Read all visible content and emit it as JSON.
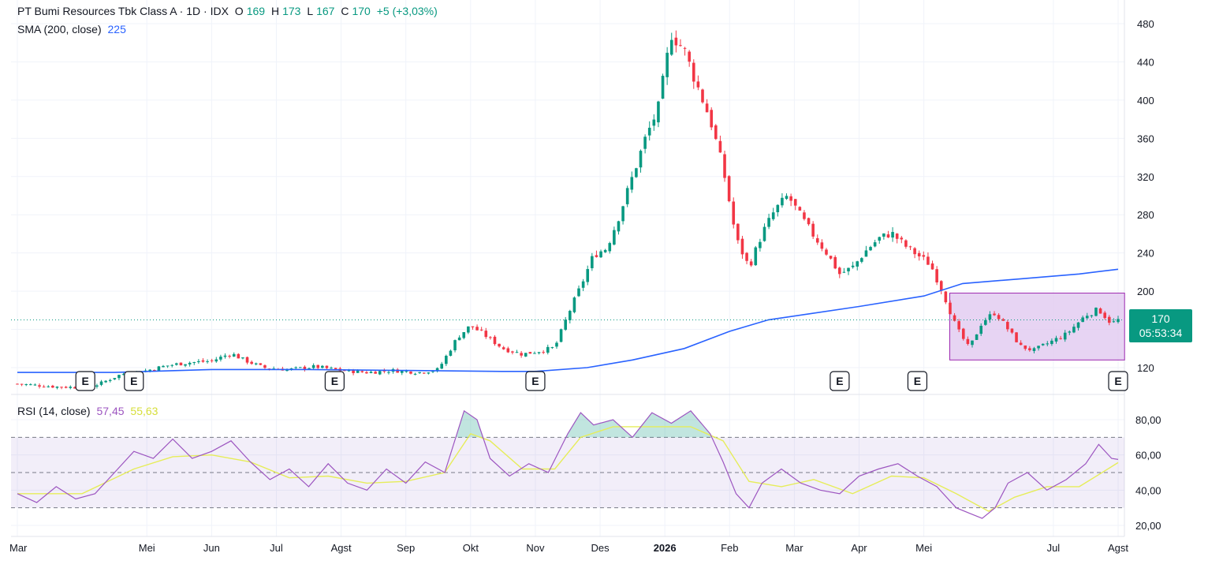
{
  "header": {
    "symbol_line": "PT Bumi Resources Tbk Class A · 1D · IDX",
    "open_label": "O",
    "open_value": "169",
    "high_label": "H",
    "high_value": "173",
    "low_label": "L",
    "low_value": "167",
    "close_label": "C",
    "close_value": "170",
    "change": "+5 (+3,03%)"
  },
  "sma_legend": {
    "label": "SMA (200, close)",
    "value": "225"
  },
  "rsi_legend": {
    "label": "RSI (14, close)",
    "rsi_value": "57,45",
    "ma_value": "55,63"
  },
  "price_tag": {
    "price": "170",
    "countdown": "05:53:34"
  },
  "colors": {
    "up": "#089981",
    "down": "#f23645",
    "sma": "#2962ff",
    "rsi": "#9c55c0",
    "rsi_ma": "#e6ed5a",
    "box_fill": "#e1c9f0",
    "box_stroke": "#9c27b0"
  },
  "chart_data": [
    {
      "type": "candlestick",
      "title": "PT Bumi Resources Tbk Class A · 1D · IDX",
      "ylim": [
        100,
        490
      ],
      "y_ticks": [
        120,
        160,
        200,
        240,
        280,
        320,
        360,
        400,
        440,
        480
      ],
      "y_tick_labels": [
        "120",
        "",
        "200",
        "240",
        "280",
        "320",
        "360",
        "400",
        "440",
        "480"
      ],
      "x_tick_labels": [
        "Mar",
        "Mei",
        "Jun",
        "Jul",
        "Agst",
        "Sep",
        "Okt",
        "Nov",
        "Des",
        "2026",
        "Feb",
        "Mar",
        "Apr",
        "Mei",
        "Jul",
        "Agst"
      ],
      "x_tick_positions": [
        0,
        2,
        3,
        4,
        5,
        6,
        7,
        8,
        9,
        10,
        11,
        12,
        13,
        14,
        16,
        17
      ],
      "earnings_markers": [
        "E",
        "E",
        "E",
        "E",
        "E",
        "E",
        "E"
      ],
      "earnings_positions": [
        1.05,
        1.8,
        4.9,
        8.0,
        12.7,
        13.9,
        17.0
      ],
      "price_path": [
        [
          0,
          103
        ],
        [
          0.6,
          100
        ],
        [
          1.1,
          99
        ],
        [
          1.3,
          104
        ],
        [
          1.6,
          113
        ],
        [
          2,
          117
        ],
        [
          2.3,
          122
        ],
        [
          2.6,
          125
        ],
        [
          3,
          127
        ],
        [
          3.3,
          135
        ],
        [
          3.5,
          128
        ],
        [
          3.8,
          120
        ],
        [
          4.2,
          118
        ],
        [
          4.6,
          121
        ],
        [
          5,
          117
        ],
        [
          5.4,
          115
        ],
        [
          5.8,
          117
        ],
        [
          6.2,
          115
        ],
        [
          6.5,
          118
        ],
        [
          6.8,
          152
        ],
        [
          7,
          164
        ],
        [
          7.2,
          155
        ],
        [
          7.5,
          140
        ],
        [
          7.8,
          134
        ],
        [
          8.1,
          138
        ],
        [
          8.3,
          141
        ],
        [
          8.5,
          175
        ],
        [
          8.7,
          205
        ],
        [
          8.9,
          238
        ],
        [
          9.1,
          245
        ],
        [
          9.3,
          280
        ],
        [
          9.5,
          320
        ],
        [
          9.7,
          360
        ],
        [
          9.9,
          392
        ],
        [
          10.1,
          470
        ],
        [
          10.3,
          452
        ],
        [
          10.5,
          415
        ],
        [
          10.7,
          380
        ],
        [
          10.9,
          328
        ],
        [
          11,
          292
        ],
        [
          11.1,
          255
        ],
        [
          11.3,
          225
        ],
        [
          11.5,
          260
        ],
        [
          11.7,
          285
        ],
        [
          11.9,
          300
        ],
        [
          12.1,
          278
        ],
        [
          12.3,
          258
        ],
        [
          12.5,
          240
        ],
        [
          12.7,
          218
        ],
        [
          12.9,
          225
        ],
        [
          13.1,
          242
        ],
        [
          13.3,
          255
        ],
        [
          13.5,
          261
        ],
        [
          13.7,
          248
        ],
        [
          13.9,
          238
        ],
        [
          14.1,
          228
        ],
        [
          14.3,
          198
        ],
        [
          14.5,
          162
        ],
        [
          14.7,
          140
        ],
        [
          14.9,
          168
        ],
        [
          15.1,
          178
        ],
        [
          15.3,
          160
        ],
        [
          15.5,
          142
        ],
        [
          15.7,
          138
        ],
        [
          15.9,
          145
        ],
        [
          16.2,
          155
        ],
        [
          16.5,
          175
        ],
        [
          16.7,
          181
        ],
        [
          16.9,
          166
        ],
        [
          17,
          170
        ]
      ],
      "sma_path": [
        [
          0,
          115
        ],
        [
          1.5,
          115
        ],
        [
          3,
          118
        ],
        [
          4.5,
          118
        ],
        [
          6,
          117
        ],
        [
          7.5,
          116
        ],
        [
          8,
          116
        ],
        [
          8.8,
          120
        ],
        [
          9.5,
          128
        ],
        [
          10.3,
          140
        ],
        [
          11,
          158
        ],
        [
          11.6,
          170
        ],
        [
          12.2,
          176
        ],
        [
          13,
          184
        ],
        [
          14,
          195
        ],
        [
          14.6,
          208
        ],
        [
          15.5,
          213
        ],
        [
          16.4,
          218
        ],
        [
          17,
          223
        ]
      ],
      "sma_last": 225,
      "last_price": 170,
      "highlight_box": {
        "x_from": 14.4,
        "x_to": 17.1,
        "y_from": 128,
        "y_to": 198
      }
    },
    {
      "type": "line",
      "title": "RSI (14, close)",
      "ylim": [
        15,
        88
      ],
      "y_ticks": [
        20,
        40,
        60,
        80
      ],
      "y_tick_labels": [
        "20,00",
        "40,00",
        "60,00",
        "80,00"
      ],
      "bands": {
        "upper": 70,
        "middle": 50,
        "lower": 30
      },
      "rsi_path": [
        [
          0,
          38
        ],
        [
          0.3,
          33
        ],
        [
          0.6,
          42
        ],
        [
          0.9,
          35
        ],
        [
          1.2,
          38
        ],
        [
          1.5,
          50
        ],
        [
          1.8,
          62
        ],
        [
          2.1,
          58
        ],
        [
          2.4,
          69
        ],
        [
          2.7,
          58
        ],
        [
          3,
          62
        ],
        [
          3.3,
          68
        ],
        [
          3.6,
          56
        ],
        [
          3.9,
          46
        ],
        [
          4.2,
          52
        ],
        [
          4.5,
          42
        ],
        [
          4.8,
          55
        ],
        [
          5.1,
          44
        ],
        [
          5.4,
          40
        ],
        [
          5.7,
          52
        ],
        [
          6,
          44
        ],
        [
          6.3,
          56
        ],
        [
          6.6,
          50
        ],
        [
          6.9,
          85
        ],
        [
          7.1,
          80
        ],
        [
          7.3,
          58
        ],
        [
          7.6,
          48
        ],
        [
          7.9,
          55
        ],
        [
          8.2,
          50
        ],
        [
          8.5,
          72
        ],
        [
          8.7,
          84
        ],
        [
          8.9,
          77
        ],
        [
          9.2,
          80
        ],
        [
          9.5,
          70
        ],
        [
          9.8,
          84
        ],
        [
          10.1,
          78
        ],
        [
          10.4,
          85
        ],
        [
          10.7,
          72
        ],
        [
          10.9,
          56
        ],
        [
          11.1,
          38
        ],
        [
          11.3,
          30
        ],
        [
          11.5,
          44
        ],
        [
          11.8,
          52
        ],
        [
          12.1,
          44
        ],
        [
          12.4,
          40
        ],
        [
          12.7,
          38
        ],
        [
          13,
          48
        ],
        [
          13.3,
          52
        ],
        [
          13.6,
          55
        ],
        [
          13.9,
          48
        ],
        [
          14.2,
          42
        ],
        [
          14.5,
          30
        ],
        [
          14.7,
          27
        ],
        [
          14.9,
          24
        ],
        [
          15.1,
          30
        ],
        [
          15.3,
          44
        ],
        [
          15.6,
          50
        ],
        [
          15.9,
          40
        ],
        [
          16.2,
          46
        ],
        [
          16.5,
          55
        ],
        [
          16.7,
          66
        ],
        [
          16.9,
          58
        ],
        [
          17,
          57.45
        ]
      ],
      "rsi_ma_path": [
        [
          0,
          38
        ],
        [
          1,
          38
        ],
        [
          1.8,
          52
        ],
        [
          2.4,
          59
        ],
        [
          3,
          60
        ],
        [
          3.6,
          56
        ],
        [
          4.2,
          47
        ],
        [
          4.8,
          48
        ],
        [
          5.4,
          44
        ],
        [
          6,
          45
        ],
        [
          6.6,
          50
        ],
        [
          7,
          72
        ],
        [
          7.3,
          68
        ],
        [
          7.8,
          52
        ],
        [
          8.3,
          52
        ],
        [
          8.7,
          70
        ],
        [
          9.2,
          76
        ],
        [
          9.8,
          76
        ],
        [
          10.4,
          76
        ],
        [
          10.9,
          68
        ],
        [
          11.3,
          45
        ],
        [
          11.8,
          42
        ],
        [
          12.3,
          46
        ],
        [
          12.9,
          38
        ],
        [
          13.5,
          48
        ],
        [
          14,
          47
        ],
        [
          14.5,
          38
        ],
        [
          15,
          28
        ],
        [
          15.4,
          36
        ],
        [
          15.9,
          42
        ],
        [
          16.4,
          42
        ],
        [
          17,
          55.63
        ]
      ],
      "rsi_last": 57.45,
      "rsi_ma_last": 55.63
    }
  ]
}
